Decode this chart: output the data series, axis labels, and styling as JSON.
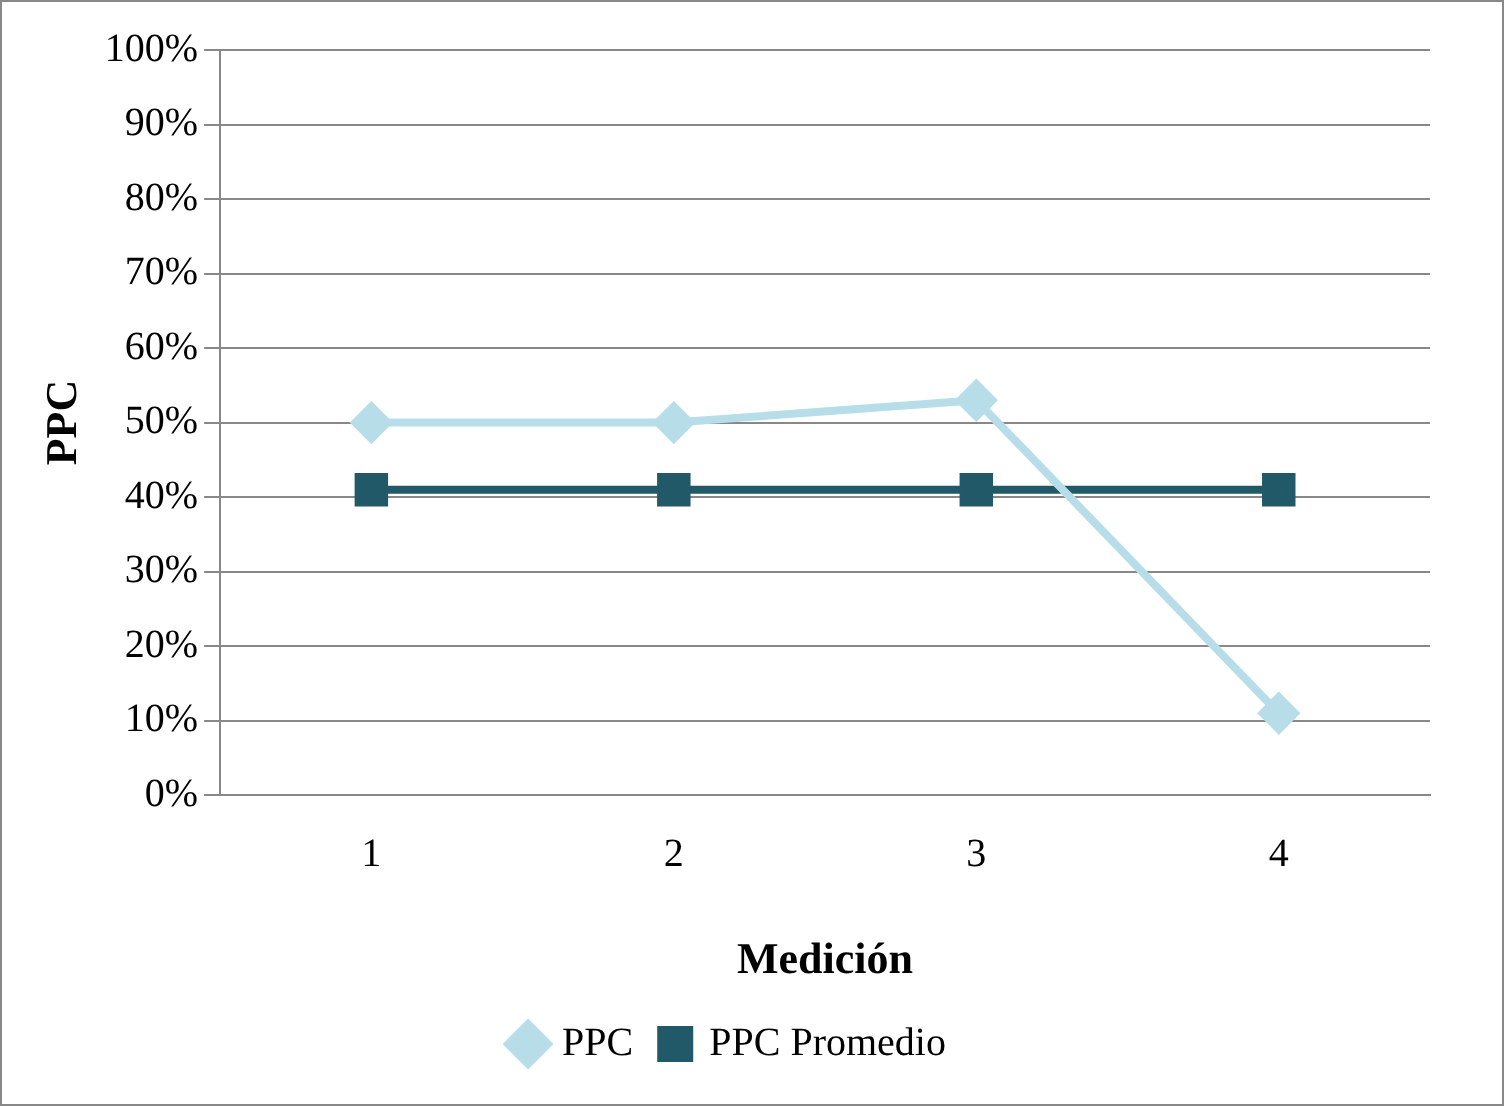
{
  "chart_data": {
    "type": "line",
    "xlabel": "Medición",
    "ylabel": "PPC",
    "categories": [
      "1",
      "2",
      "3",
      "4"
    ],
    "series": [
      {
        "name": "PPC",
        "color": "#b7dee8",
        "values": [
          50,
          50,
          53,
          11
        ],
        "marker": "diamond"
      },
      {
        "name": "PPC Promedio",
        "color": "#215968",
        "values": [
          41,
          41,
          41,
          41
        ],
        "marker": "square"
      }
    ],
    "ylim": [
      0,
      100
    ],
    "yticks": [
      {
        "value": 0,
        "label": "0%"
      },
      {
        "value": 10,
        "label": "10%"
      },
      {
        "value": 20,
        "label": "20%"
      },
      {
        "value": 30,
        "label": "30%"
      },
      {
        "value": 40,
        "label": "40%"
      },
      {
        "value": 50,
        "label": "50%"
      },
      {
        "value": 60,
        "label": "60%"
      },
      {
        "value": 70,
        "label": "70%"
      },
      {
        "value": 80,
        "label": "80%"
      },
      {
        "value": 90,
        "label": "90%"
      },
      {
        "value": 100,
        "label": "100%"
      }
    ],
    "grid": "y",
    "legend": "bottom",
    "line_style": "solid"
  }
}
